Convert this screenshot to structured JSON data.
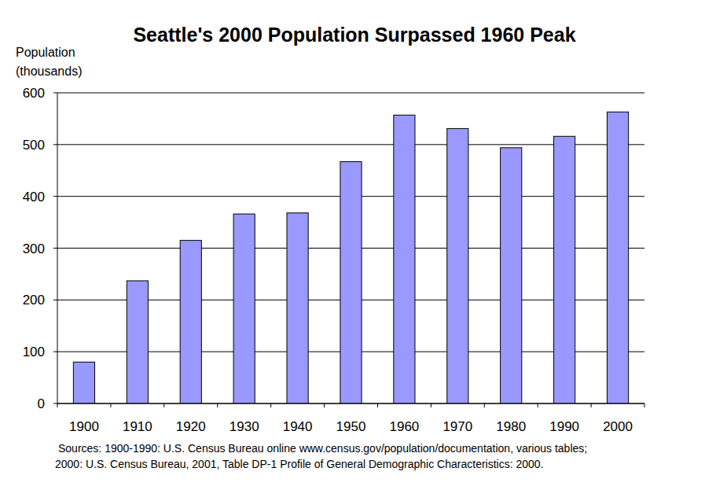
{
  "chart_data": {
    "type": "bar",
    "title": "Seattle's 2000 Population Surpassed 1960 Peak",
    "ylabel": [
      "Population",
      "(thousands)"
    ],
    "categories": [
      "1900",
      "1910",
      "1920",
      "1930",
      "1940",
      "1950",
      "1960",
      "1970",
      "1980",
      "1990",
      "2000"
    ],
    "values": [
      80,
      237,
      315,
      366,
      368,
      467,
      557,
      531,
      494,
      516,
      563
    ],
    "color": "#9999ff",
    "ylim": [
      0,
      600
    ],
    "yticks": [
      0,
      100,
      200,
      300,
      400,
      500,
      600
    ],
    "grid": true,
    "source": [
      "Sources: 1900-1990: U.S. Census Bureau online www.census.gov/population/documentation, various tables;",
      "2000: U.S. Census Bureau, 2001, Table DP-1 Profile of General Demographic Characteristics: 2000."
    ]
  }
}
